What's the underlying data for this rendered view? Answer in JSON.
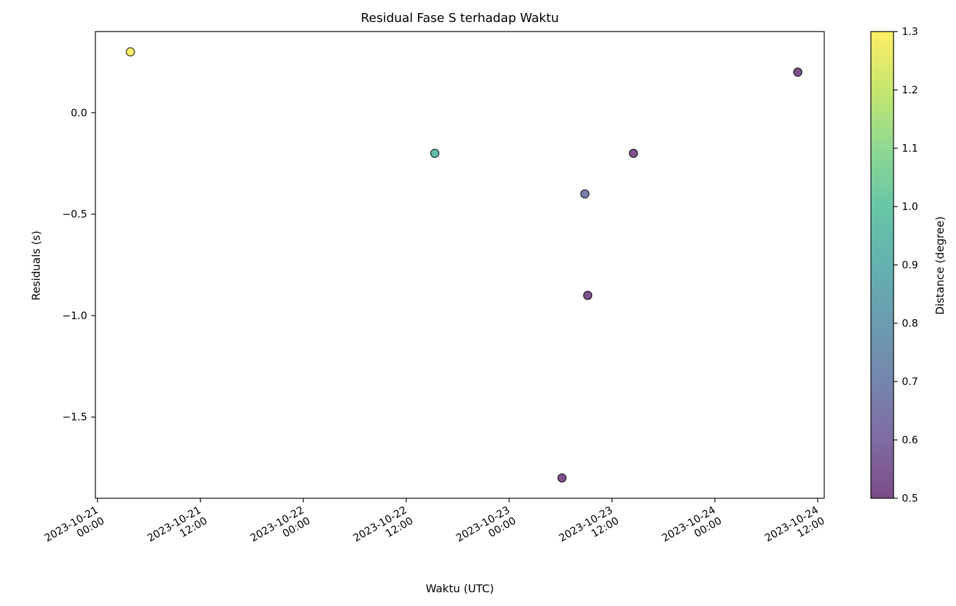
{
  "chart_data": {
    "type": "scatter",
    "title": "Residual Fase S terhadap Waktu",
    "xlabel": "Waktu (UTC)",
    "ylabel": "Residuals (s)",
    "colorbar_label": "Distance (degree)",
    "xlim": [
      "2023-10-20 23:45",
      "2023-10-24 12:45"
    ],
    "ylim": [
      -1.9,
      0.4
    ],
    "x_ticks": [
      {
        "date": "2023-10-21 00:00",
        "line1": "2023-10-21",
        "line2": "00:00"
      },
      {
        "date": "2023-10-21 12:00",
        "line1": "2023-10-21",
        "line2": "12:00"
      },
      {
        "date": "2023-10-22 00:00",
        "line1": "2023-10-22",
        "line2": "00:00"
      },
      {
        "date": "2023-10-22 12:00",
        "line1": "2023-10-22",
        "line2": "12:00"
      },
      {
        "date": "2023-10-23 00:00",
        "line1": "2023-10-23",
        "line2": "00:00"
      },
      {
        "date": "2023-10-23 12:00",
        "line1": "2023-10-23",
        "line2": "12:00"
      },
      {
        "date": "2023-10-24 00:00",
        "line1": "2023-10-24",
        "line2": "00:00"
      },
      {
        "date": "2023-10-24 12:00",
        "line1": "2023-10-24",
        "line2": "12:00"
      }
    ],
    "y_ticks": [
      0.0,
      -0.5,
      -1.0,
      -1.5
    ],
    "y_tick_labels": [
      "0.0",
      "−0.5",
      "−1.0",
      "−1.5"
    ],
    "colorbar": {
      "range": [
        0.5,
        1.3
      ],
      "ticks": [
        0.5,
        0.6,
        0.7,
        0.8,
        0.9,
        1.0,
        1.1,
        1.2,
        1.3
      ],
      "tick_labels": [
        "0.5",
        "0.6",
        "0.7",
        "0.8",
        "0.9",
        "1.0",
        "1.1",
        "1.2",
        "1.3"
      ],
      "colormap": "viridis",
      "alpha": 0.7
    },
    "points": [
      {
        "x": "2023-10-21 03:50",
        "y": 0.3,
        "distance": 1.3
      },
      {
        "x": "2023-10-22 15:20",
        "y": -0.2,
        "distance": 0.95
      },
      {
        "x": "2023-10-23 06:10",
        "y": -1.8,
        "distance": 0.52
      },
      {
        "x": "2023-10-23 08:50",
        "y": -0.4,
        "distance": 0.68
      },
      {
        "x": "2023-10-23 09:10",
        "y": -0.9,
        "distance": 0.52
      },
      {
        "x": "2023-10-23 14:30",
        "y": -0.2,
        "distance": 0.52
      },
      {
        "x": "2023-10-24 09:40",
        "y": 0.2,
        "distance": 0.52
      }
    ]
  }
}
